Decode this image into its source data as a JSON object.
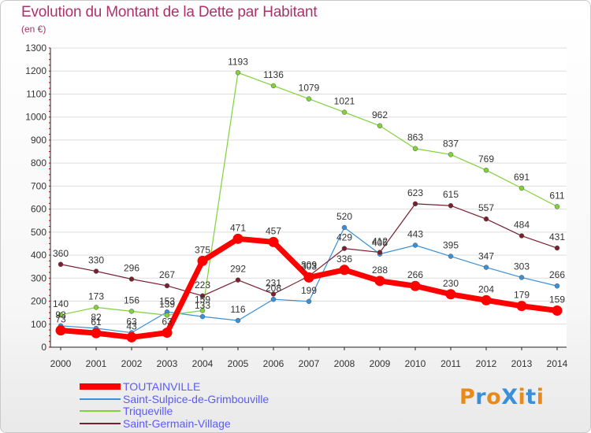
{
  "header": {
    "title": "Evolution du Montant de la Dette par Habitant",
    "subtitle": "(en €)"
  },
  "brand": {
    "text": "ProXiti",
    "colors": [
      "#e88a1a",
      "#3a8fd6",
      "#e88a1a",
      "#3a8fd6",
      "#e88a1a",
      "#3a8fd6",
      "#e88a1a"
    ]
  },
  "chart_data": {
    "type": "line",
    "title": "Evolution du Montant de la Dette par Habitant",
    "ylabel": "(en €)",
    "xlabel": "",
    "ylim": [
      0,
      1300
    ],
    "yticks": [
      0,
      100,
      200,
      300,
      400,
      500,
      600,
      700,
      800,
      900,
      1000,
      1100,
      1200,
      1300
    ],
    "grid": "horizontal",
    "legend_position": "bottom-left",
    "x": [
      "2000",
      "2001",
      "2002",
      "2003",
      "2004",
      "2005",
      "2006",
      "2007",
      "2008",
      "2009",
      "2010",
      "2011",
      "2012",
      "2013",
      "2014"
    ],
    "series": [
      {
        "name": "TOUTAINVILLE",
        "color": "#ff0000",
        "width": 7,
        "values": [
          73,
          61,
          43,
          63,
          375,
          471,
          457,
          303,
          336,
          288,
          266,
          230,
          204,
          179,
          159
        ]
      },
      {
        "name": "Saint-Sulpice-de-Grimbouville",
        "color": "#3a8fd6",
        "width": 1,
        "values": [
          93,
          82,
          63,
          153,
          133,
          116,
          208,
          199,
          520,
          405,
          443,
          395,
          347,
          303,
          266
        ]
      },
      {
        "name": "Triqueville",
        "color": "#7fd23a",
        "width": 1,
        "values": [
          140,
          173,
          156,
          139,
          159,
          1193,
          1136,
          1079,
          1021,
          962,
          863,
          837,
          769,
          691,
          611
        ]
      },
      {
        "name": "Saint-Germain-Village",
        "color": "#7a1f2e",
        "width": 1,
        "values": [
          360,
          330,
          296,
          267,
          223,
          292,
          231,
          309,
          429,
          412,
          623,
          615,
          557,
          484,
          431
        ]
      }
    ]
  }
}
